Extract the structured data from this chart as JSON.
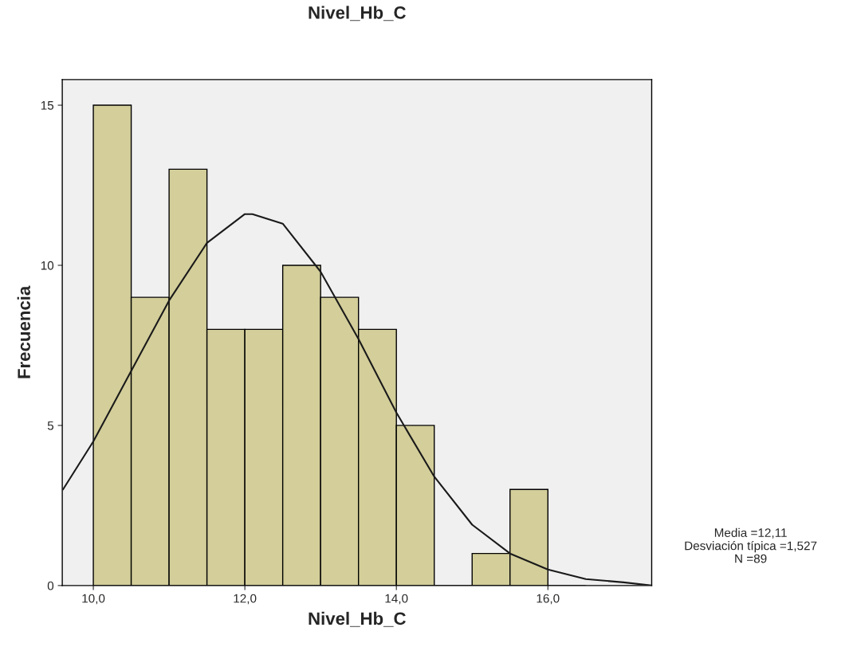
{
  "chart_data": {
    "type": "histogram",
    "title": "Nivel_Hb_C",
    "xlabel": "Nivel_Hb_C",
    "ylabel": "Frecuencia",
    "bins": [
      10.0,
      10.5,
      11.0,
      11.5,
      12.0,
      12.5,
      13.0,
      13.5,
      14.0,
      14.5,
      15.0,
      15.5,
      16.0,
      16.5
    ],
    "values": [
      15,
      9,
      13,
      8,
      8,
      10,
      9,
      8,
      5,
      0,
      1,
      3,
      0
    ],
    "color": "#d3ce9a",
    "series": [
      {
        "type": "line",
        "color": "#1a1a1a",
        "x": [
          9.6,
          10.0,
          10.5,
          11.0,
          11.5,
          12.0,
          12.1,
          12.5,
          13.0,
          13.5,
          14.0,
          14.5,
          15.0,
          15.5,
          16.0,
          16.5,
          17.0,
          17.37
        ],
        "values": [
          3.0,
          4.5,
          6.7,
          8.9,
          10.7,
          11.6,
          11.6,
          11.3,
          9.8,
          7.7,
          5.4,
          3.4,
          1.9,
          1.0,
          0.5,
          0.2,
          0.1,
          0.0
        ]
      }
    ],
    "xlim": [
      9.59,
      17.37
    ],
    "ylim": [
      0,
      15.8
    ],
    "xticks": [
      {
        "value": 10,
        "label": "10,0"
      },
      {
        "value": 12,
        "label": "12,0"
      },
      {
        "value": 14,
        "label": "14,0"
      },
      {
        "value": 16,
        "label": "16,0"
      }
    ],
    "yticks": [
      0,
      5,
      10,
      15
    ],
    "annotations": [
      "Media =12,11",
      "Desviación típica =1,527",
      "N =89"
    ]
  }
}
